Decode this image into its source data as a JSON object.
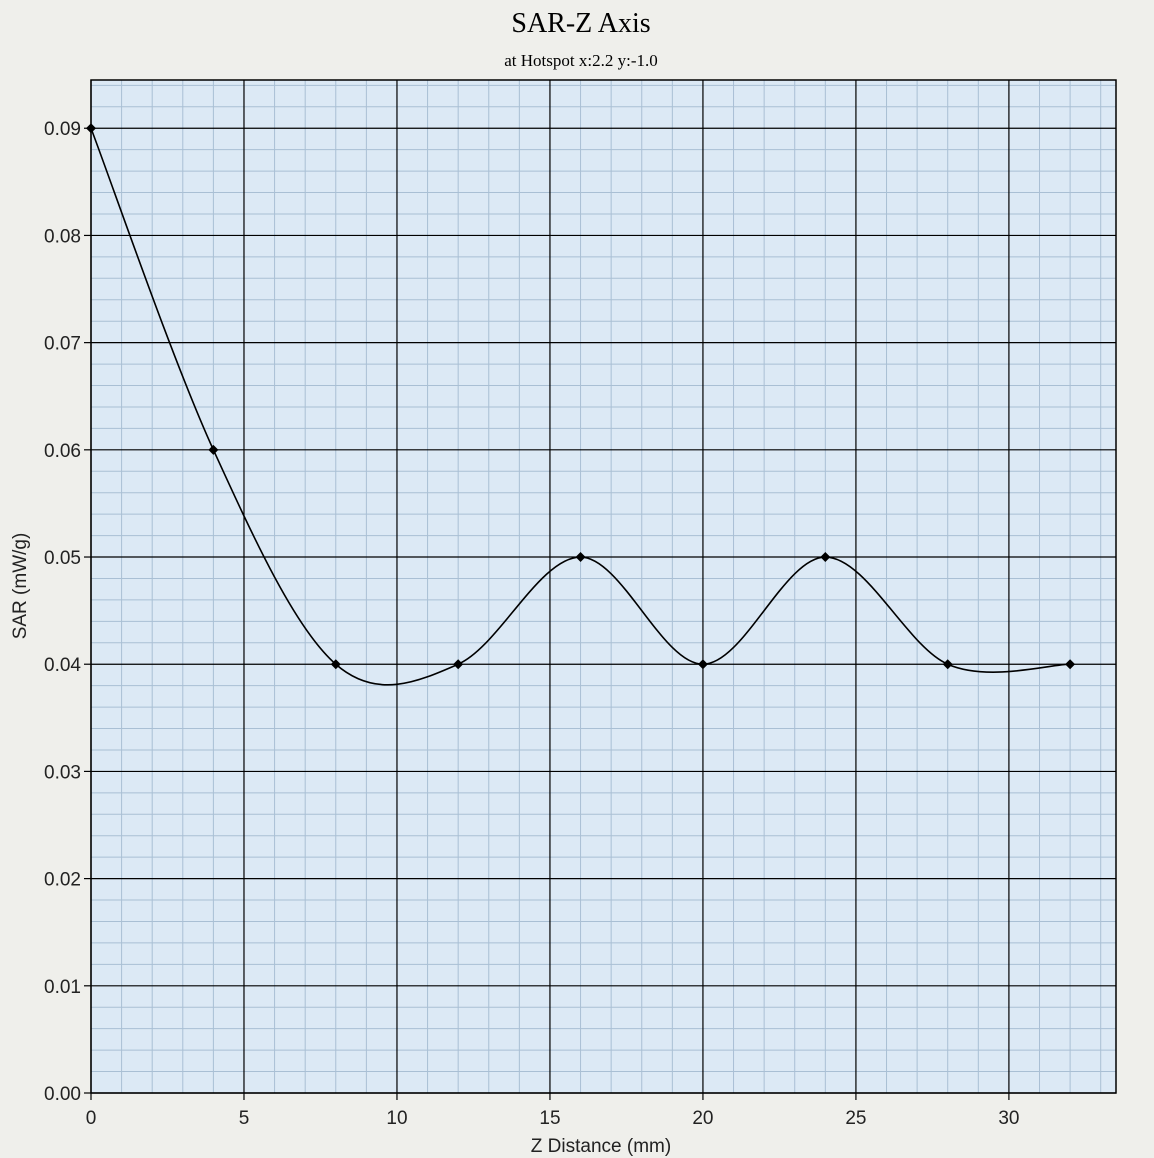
{
  "chart_data": {
    "type": "line",
    "title": "SAR-Z Axis",
    "subtitle": "at Hotspot x:2.2 y:-1.0",
    "xlabel": "Z Distance (mm)",
    "ylabel": "SAR (mW/g)",
    "xlim": [
      0,
      33.5
    ],
    "ylim": [
      0,
      0.0945
    ],
    "xticks": [
      0,
      5,
      10,
      15,
      20,
      25,
      30
    ],
    "xtick_labels": [
      "0",
      "5",
      "10",
      "15",
      "20",
      "25",
      "30"
    ],
    "yticks": [
      0,
      0.01,
      0.02,
      0.03,
      0.04,
      0.05,
      0.06,
      0.07,
      0.08,
      0.09
    ],
    "ytick_labels": [
      "0.00",
      "0.01",
      "0.02",
      "0.03",
      "0.04",
      "0.05",
      "0.06",
      "0.07",
      "0.08",
      "0.09"
    ],
    "grid": true,
    "series": [
      {
        "x": [
          0,
          4,
          8,
          12,
          16,
          20,
          24,
          28,
          32
        ],
        "y": [
          0.09,
          0.06,
          0.04,
          0.04,
          0.05,
          0.04,
          0.05,
          0.04,
          0.04
        ]
      }
    ],
    "colors": {
      "plot_background": "#dce9f5",
      "major_grid": "#000000",
      "minor_grid": "#a9bfd4",
      "line": "#000000",
      "marker": "#000000"
    }
  }
}
